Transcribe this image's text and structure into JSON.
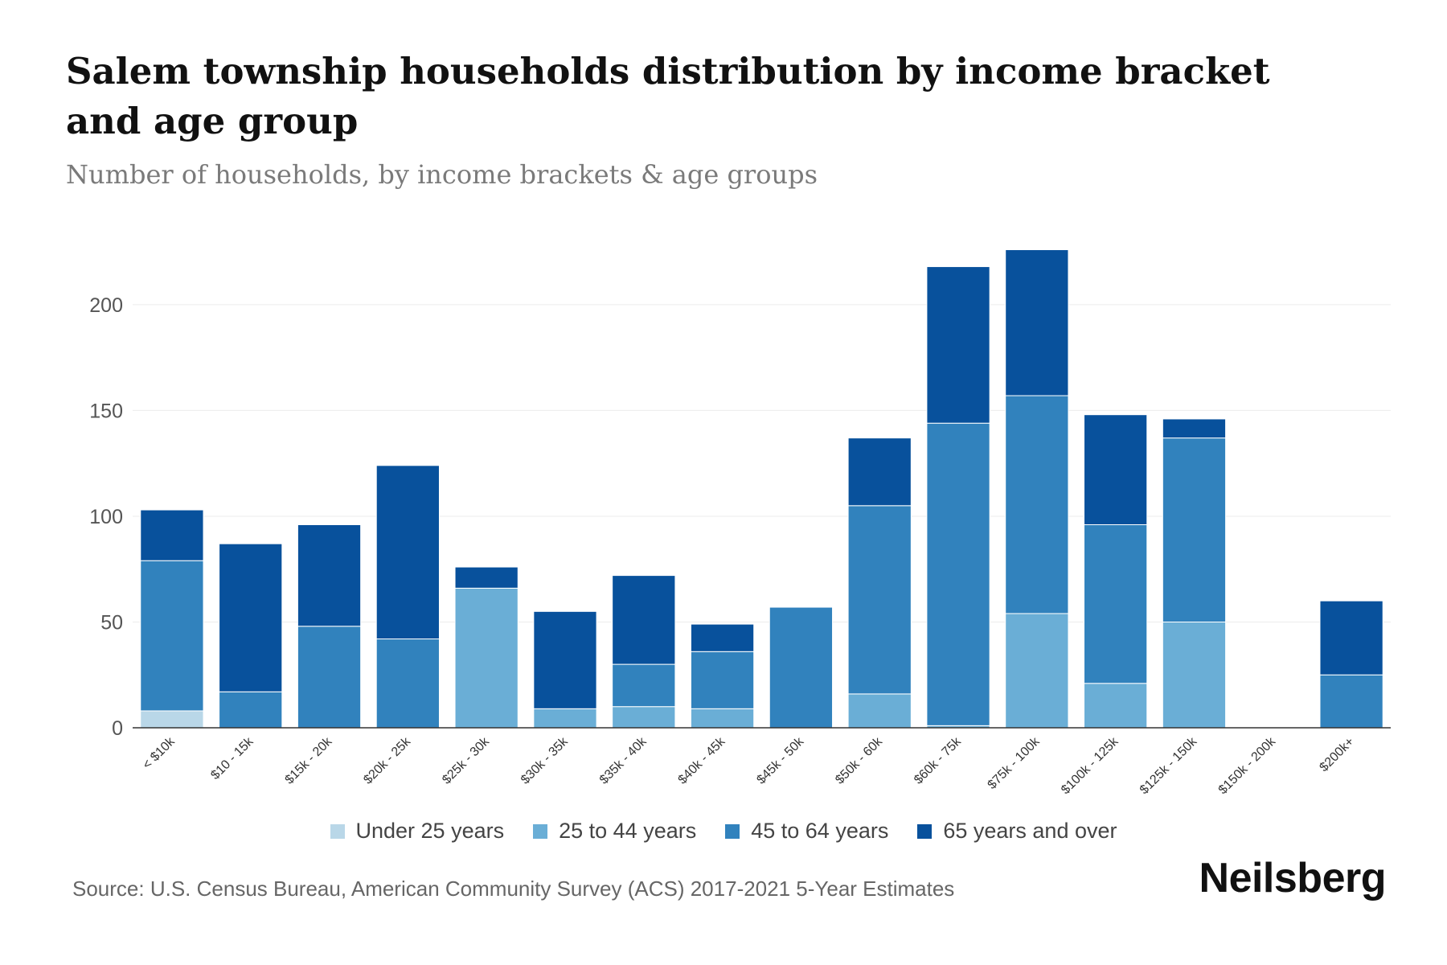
{
  "header": {
    "title": "Salem township households distribution by income bracket and age group",
    "subtitle": "Number of households, by income brackets & age groups"
  },
  "footer": {
    "source": "Source: U.S. Census Bureau, American Community Survey (ACS) 2017-2021 5-Year Estimates",
    "brand": "Neilsberg"
  },
  "chart_data": {
    "type": "bar",
    "stacked": true,
    "title": "Salem township households distribution by income bracket and age group",
    "subtitle": "Number of households, by income brackets & age groups",
    "xlabel": "",
    "ylabel": "",
    "ylim": [
      0,
      230
    ],
    "yticks": [
      0,
      50,
      100,
      150,
      200
    ],
    "grid": true,
    "legend_position": "bottom",
    "categories": [
      "< $10k",
      "$10 - 15k",
      "$15k - 20k",
      "$20k - 25k",
      "$25k - 30k",
      "$30k - 35k",
      "$35k - 40k",
      "$40k - 45k",
      "$45k - 50k",
      "$50k - 60k",
      "$60k - 75k",
      "$75k - 100k",
      "$100k - 125k",
      "$125k - 150k",
      "$150k - 200k",
      "$200k+"
    ],
    "series": [
      {
        "name": "Under 25 years",
        "color": "#b9d7e8",
        "values": [
          8,
          0,
          0,
          0,
          0,
          0,
          0,
          0,
          0,
          0,
          0,
          0,
          0,
          0,
          0,
          0
        ]
      },
      {
        "name": "25 to 44 years",
        "color": "#6aaed6",
        "values": [
          0,
          0,
          0,
          0,
          66,
          9,
          10,
          9,
          0,
          16,
          1,
          54,
          21,
          50,
          0,
          0
        ]
      },
      {
        "name": "45 to 64 years",
        "color": "#3182bd",
        "values": [
          71,
          17,
          48,
          42,
          0,
          0,
          20,
          27,
          57,
          89,
          143,
          103,
          75,
          87,
          0,
          25
        ]
      },
      {
        "name": "65 years and over",
        "color": "#08519c",
        "values": [
          24,
          70,
          48,
          82,
          10,
          46,
          42,
          13,
          0,
          32,
          74,
          69,
          52,
          9,
          0,
          35
        ]
      }
    ]
  }
}
